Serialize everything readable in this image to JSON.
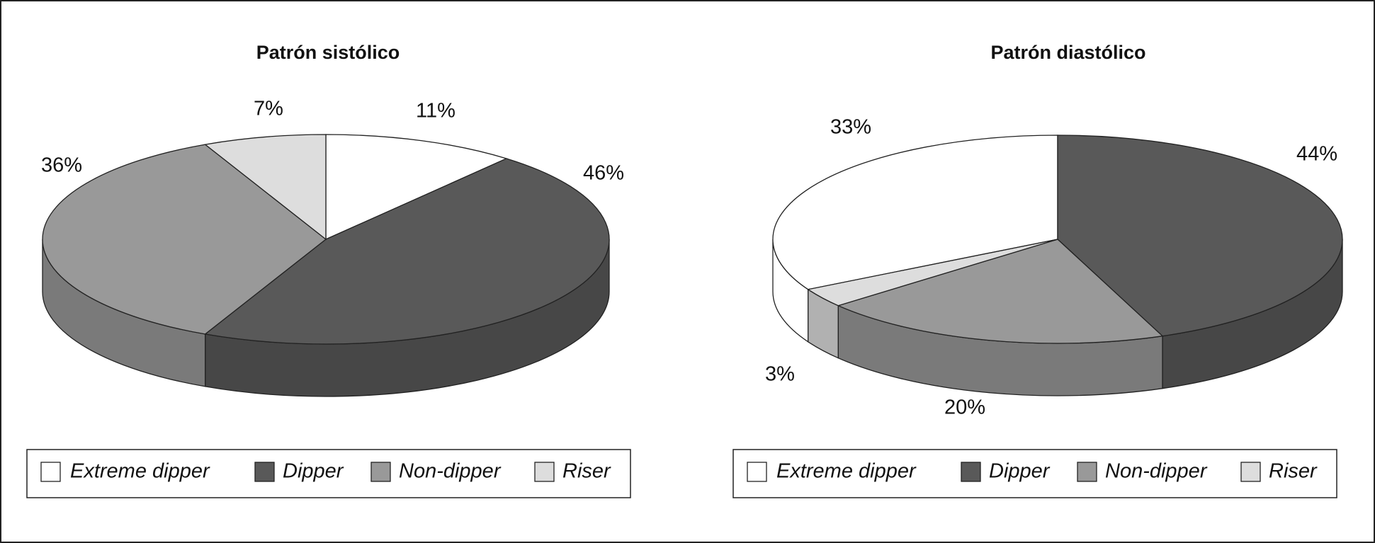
{
  "chart_data": [
    {
      "type": "pie",
      "title": "Patrón sistólico",
      "categories": [
        "Extreme dipper",
        "Dipper",
        "Non-dipper",
        "Riser"
      ],
      "values": [
        11,
        46,
        36,
        7
      ],
      "value_labels": [
        "11%",
        "46%",
        "36%",
        "7%"
      ],
      "colors": [
        "#ffffff",
        "#595959",
        "#999999",
        "#dddddd"
      ],
      "legend": "bottom"
    },
    {
      "type": "pie",
      "title": "Patrón diastólico",
      "categories": [
        "Extreme dipper",
        "Dipper",
        "Non-dipper",
        "Riser"
      ],
      "values": [
        33,
        44,
        20,
        3
      ],
      "value_labels": [
        "33%",
        "44%",
        "20%",
        "3%"
      ],
      "colors": [
        "#ffffff",
        "#595959",
        "#999999",
        "#dddddd"
      ],
      "legend": "bottom"
    }
  ]
}
